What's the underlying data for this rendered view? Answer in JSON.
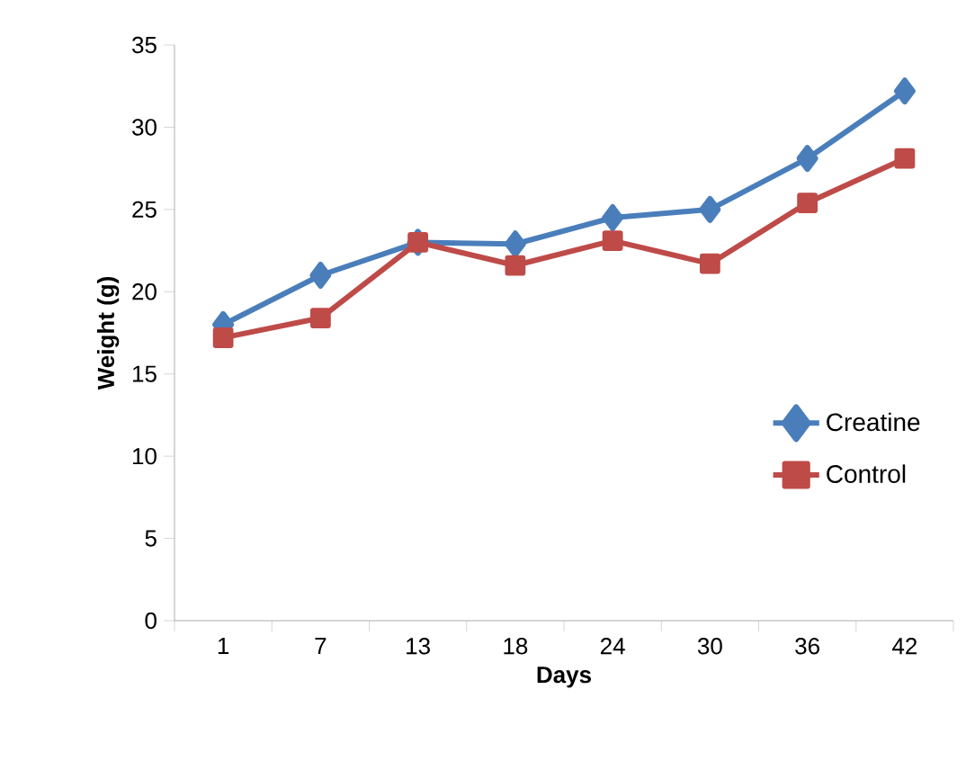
{
  "chart_data": {
    "type": "line",
    "xlabel": "Days",
    "ylabel": "Weight (g)",
    "categories": [
      "1",
      "7",
      "13",
      "18",
      "24",
      "30",
      "36",
      "42"
    ],
    "series": [
      {
        "name": "Creatine",
        "color": "#4a7ebb",
        "marker": "diamond",
        "values": [
          18.0,
          21.0,
          23.0,
          22.9,
          24.5,
          25.0,
          28.1,
          32.2
        ]
      },
      {
        "name": "Control",
        "color": "#be4b48",
        "marker": "square",
        "values": [
          17.2,
          18.4,
          23.0,
          21.6,
          23.1,
          21.7,
          25.4,
          28.1
        ]
      }
    ],
    "ylim": [
      0,
      35
    ],
    "yticks": [
      0,
      5,
      10,
      15,
      20,
      25,
      30,
      35
    ],
    "grid": false,
    "legend": "right",
    "line_style": "solid"
  }
}
